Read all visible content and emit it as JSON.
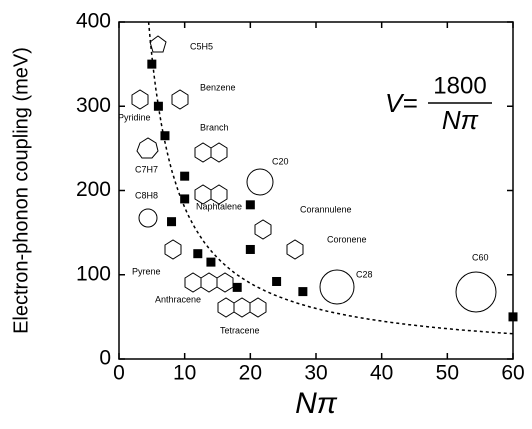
{
  "chart_data": {
    "type": "scatter",
    "x_label": "Nπ",
    "y_label": "Electron-phonon coupling (meV)",
    "x": [
      5,
      6,
      7,
      10,
      10,
      8,
      12,
      14,
      18,
      20,
      20,
      24,
      28,
      60
    ],
    "values": [
      350,
      300,
      265,
      217,
      190,
      163,
      125,
      115,
      85,
      183,
      130,
      92,
      80,
      50
    ],
    "color": "#000000",
    "xlim": [
      0,
      60
    ],
    "xticks": [
      0,
      10,
      20,
      30,
      40,
      50,
      60
    ],
    "ylim": [
      0,
      400
    ],
    "yticks": [
      0,
      100,
      200,
      300,
      400
    ],
    "equation": {
      "lhs": "V=",
      "numerator": 1800,
      "denominator": "Nπ"
    },
    "annotations": [
      "C5H5",
      "Benzene",
      "Pyridine",
      "Branch",
      "C7H7",
      "C20",
      "C8H8",
      "Naphtalene",
      "Corannulene",
      "Coronene",
      "Pyrene",
      "C28",
      "Anthracene",
      "Tetracene",
      "C60"
    ]
  }
}
